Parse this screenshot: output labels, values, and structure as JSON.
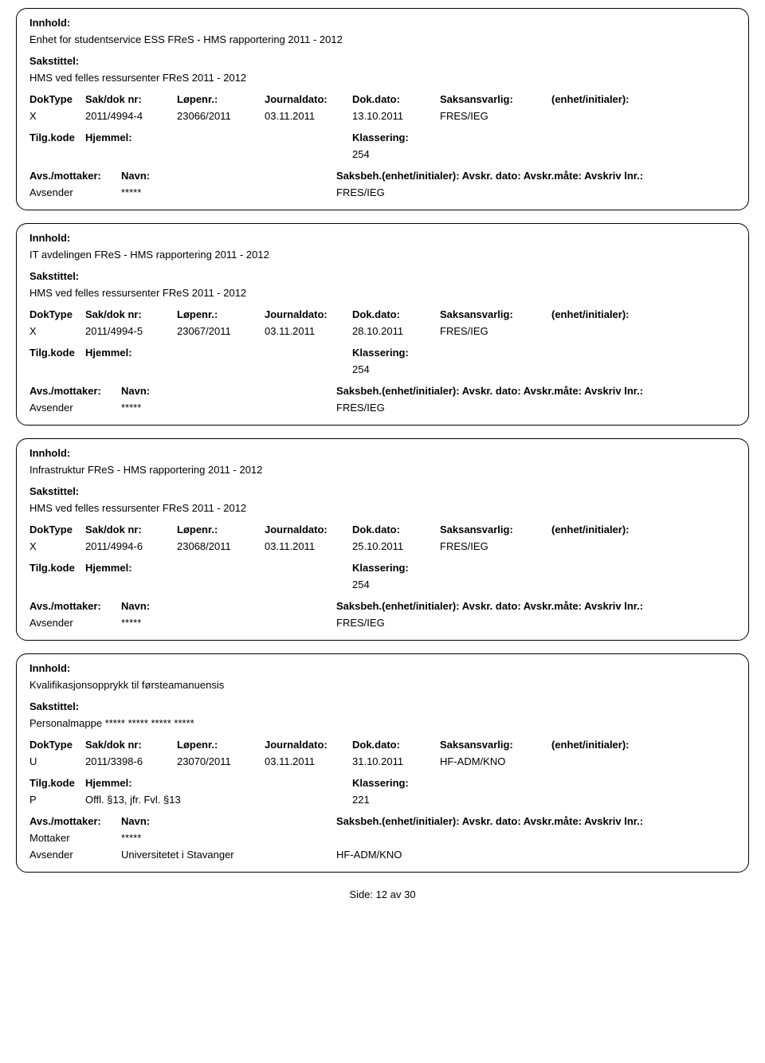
{
  "labels": {
    "innhold": "Innhold:",
    "sakstittel": "Sakstittel:",
    "doktype": "DokType",
    "sakdok": "Sak/dok nr:",
    "lopenr": "Løpenr.:",
    "journaldato": "Journaldato:",
    "dokdato": "Dok.dato:",
    "saksansvarlig": "Saksansvarlig:",
    "enhet": "(enhet/initialer):",
    "tilgkode": "Tilg.kode",
    "hjemmel": "Hjemmel:",
    "klassering": "Klassering:",
    "avsmottaker": "Avs./mottaker:",
    "navn": "Navn:",
    "saksbeh_rest": "Saksbeh.(enhet/initialer): Avskr. dato: Avskr.måte: Avskriv lnr.:"
  },
  "records": [
    {
      "innhold": "Enhet for studentservice ESS FReS - HMS rapportering 2011 - 2012",
      "sakstittel": "HMS ved felles ressursenter FReS 2011 - 2012",
      "doktype": "X",
      "sakdok": "2011/4994-4",
      "lopenr": "23066/2011",
      "journaldato": "03.11.2011",
      "dokdato": "13.10.2011",
      "saksansvarlig": "FRES/IEG",
      "enhet": "",
      "tilgkode": "",
      "hjemmel": "",
      "klassering": "254",
      "rows": [
        {
          "role": "Avsender",
          "navn": "*****",
          "saksbeh": "FRES/IEG"
        }
      ]
    },
    {
      "innhold": "IT avdelingen FReS - HMS rapportering 2011 - 2012",
      "sakstittel": "HMS ved felles ressursenter FReS 2011 - 2012",
      "doktype": "X",
      "sakdok": "2011/4994-5",
      "lopenr": "23067/2011",
      "journaldato": "03.11.2011",
      "dokdato": "28.10.2011",
      "saksansvarlig": "FRES/IEG",
      "enhet": "",
      "tilgkode": "",
      "hjemmel": "",
      "klassering": "254",
      "rows": [
        {
          "role": "Avsender",
          "navn": "*****",
          "saksbeh": "FRES/IEG"
        }
      ]
    },
    {
      "innhold": "Infrastruktur FReS - HMS rapportering 2011 - 2012",
      "sakstittel": "HMS ved felles ressursenter FReS 2011 - 2012",
      "doktype": "X",
      "sakdok": "2011/4994-6",
      "lopenr": "23068/2011",
      "journaldato": "03.11.2011",
      "dokdato": "25.10.2011",
      "saksansvarlig": "FRES/IEG",
      "enhet": "",
      "tilgkode": "",
      "hjemmel": "",
      "klassering": "254",
      "rows": [
        {
          "role": "Avsender",
          "navn": "*****",
          "saksbeh": "FRES/IEG"
        }
      ]
    },
    {
      "innhold": "Kvalifikasjonsopprykk til førsteamanuensis",
      "sakstittel": "Personalmappe ***** ***** ***** *****",
      "doktype": "U",
      "sakdok": "2011/3398-6",
      "lopenr": "23070/2011",
      "journaldato": "03.11.2011",
      "dokdato": "31.10.2011",
      "saksansvarlig": "HF-ADM/KNO",
      "enhet": "",
      "tilgkode": "P",
      "hjemmel": "Offl. §13, jfr. Fvl. §13",
      "klassering": "221",
      "rows": [
        {
          "role": "Mottaker",
          "navn": "*****",
          "saksbeh": ""
        },
        {
          "role": "Avsender",
          "navn": "Universitetet i Stavanger",
          "saksbeh": "HF-ADM/KNO"
        }
      ]
    }
  ],
  "footer": {
    "side": "Side:",
    "page": "12",
    "av": "av",
    "total": "30"
  }
}
